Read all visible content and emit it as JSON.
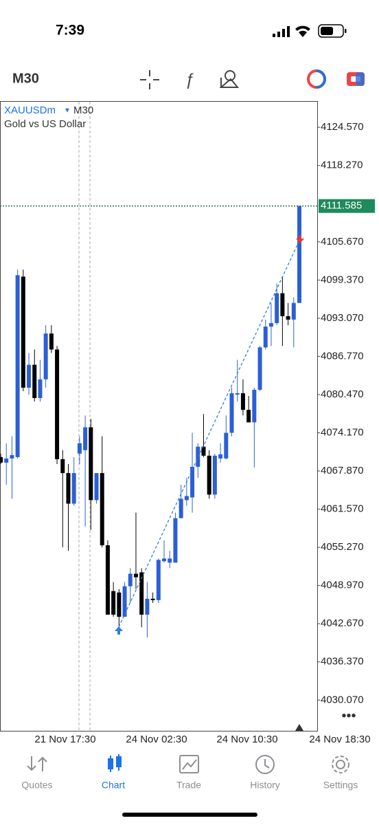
{
  "status_bar": {
    "time": "7:39"
  },
  "toolbar": {
    "timeframe": "M30"
  },
  "chart_data": {
    "type": "candlestick",
    "symbol": "XAUUSDm",
    "timeframe": "M30",
    "description": "Gold vs US Dollar",
    "up_color": "#2c5fd6",
    "down_color": "#000000",
    "open": [
      4070.16,
      4069.24,
      4069.93,
      4070.16,
      4099.94,
      4081.61,
      4085.39,
      4079.9,
      4082.99,
      4090.55,
      4087.91,
      4069.82,
      4067.52,
      4062.48,
      4070.73,
      4071.3,
      4075.08,
      4063.06,
      4067.52,
      4055.61,
      4048.05,
      4047.82,
      4043.81,
      4048.85,
      4050.91,
      4051.14,
      4044.16,
      4046.79,
      4046.56,
      4052.98,
      4052.75,
      4052.75,
      4060.08,
      4063.06,
      4063.51,
      4068.56,
      4071.88,
      4070.39,
      4063.97,
      4069.93,
      4069.93,
      4074.17,
      4080.47,
      4080.7,
      4077.95,
      4075.89,
      4081.27,
      4088.26,
      4091.69,
      4092.27,
      4097.19,
      4093.41,
      4092.84,
      4095.59
    ],
    "high": [
      4070.73,
      4072.45,
      4073.6,
      4101.09,
      4101.09,
      4087.34,
      4087.91,
      4086.2,
      4091.92,
      4091.92,
      4088.49,
      4071.3,
      4069.01,
      4070.16,
      4073.6,
      4077.03,
      4076.46,
      4067.52,
      4073.6,
      4056.41,
      4049.54,
      4048.39,
      4049.54,
      4051.83,
      4060.99,
      4051.83,
      4049.54,
      4047.82,
      4053.43,
      4056.41,
      4054.69,
      4060.99,
      4065.58,
      4066.72,
      4074.17,
      4072.45,
      4077.26,
      4071.3,
      4070.73,
      4072.45,
      4077.03,
      4081.61,
      4086.2,
      4082.99,
      4080.24,
      4081.61,
      4088.49,
      4092.84,
      4095.59,
      4098.8,
      4099.94,
      4095.59,
      4096.5,
      4111.59
    ],
    "low": [
      4069.01,
      4065.58,
      4063.29,
      4069.93,
      4081.04,
      4080.47,
      4079.32,
      4079.32,
      4081.61,
      4087.34,
      4069.01,
      4055.27,
      4054.69,
      4062.14,
      4069.01,
      4058.7,
      4058.13,
      4062.48,
      4055.27,
      4044.16,
      4043.81,
      4042.09,
      4043.81,
      4046.1,
      4048.39,
      4042.09,
      4040.38,
      4046.1,
      4046.1,
      4052.75,
      4051.83,
      4052.75,
      4060.08,
      4062.14,
      4060.99,
      4066.72,
      4070.16,
      4063.29,
      4063.29,
      4069.24,
      4069.82,
      4073.6,
      4079.32,
      4077.03,
      4075.89,
      4068.44,
      4081.04,
      4087.91,
      4088.49,
      4091.92,
      4088.49,
      4091.92,
      4088.26,
      4095.59
    ],
    "close": [
      4069.24,
      4069.93,
      4070.5,
      4100.17,
      4081.61,
      4085.39,
      4079.9,
      4082.99,
      4090.55,
      4087.91,
      4069.82,
      4067.52,
      4062.48,
      4067.52,
      4072.45,
      4075.08,
      4063.06,
      4067.52,
      4055.61,
      4044.16,
      4044.16,
      4043.81,
      4048.85,
      4050.91,
      4050.34,
      4044.16,
      4046.79,
      4046.56,
      4053.2,
      4053.43,
      4053.43,
      4060.08,
      4063.29,
      4063.74,
      4068.56,
      4071.88,
      4070.39,
      4063.97,
      4070.39,
      4070.62,
      4074.17,
      4080.7,
      4080.7,
      4077.95,
      4075.89,
      4081.27,
      4088.26,
      4091.69,
      4092.27,
      4097.19,
      4093.41,
      4092.84,
      4095.59,
      4111.59
    ],
    "ylim": [
      4025.0,
      4128.9
    ],
    "yticks": [
      {
        "value": 4124.57,
        "label": "4124.570"
      },
      {
        "value": 4118.27,
        "label": "4118.270"
      },
      {
        "value": 4105.67,
        "label": "4105.670"
      },
      {
        "value": 4099.37,
        "label": "4099.370"
      },
      {
        "value": 4093.07,
        "label": "4093.070"
      },
      {
        "value": 4086.77,
        "label": "4086.770"
      },
      {
        "value": 4080.47,
        "label": "4080.470"
      },
      {
        "value": 4074.17,
        "label": "4074.170"
      },
      {
        "value": 4067.87,
        "label": "4067.870"
      },
      {
        "value": 4061.57,
        "label": "4061.570"
      },
      {
        "value": 4055.27,
        "label": "4055.270"
      },
      {
        "value": 4048.97,
        "label": "4048.970"
      },
      {
        "value": 4042.67,
        "label": "4042.670"
      },
      {
        "value": 4036.37,
        "label": "4036.370"
      },
      {
        "value": 4030.07,
        "label": "4030.070"
      }
    ],
    "current_price": {
      "value": 4111.585,
      "label": "4111.585"
    },
    "x_labels": [
      "21 Nov 17:30",
      "24 Nov 02:30",
      "24 Nov 10:30",
      "24 Nov 18:30"
    ]
  },
  "nav": {
    "tabs": [
      "Quotes",
      "Chart",
      "Trade",
      "History",
      "Settings"
    ],
    "active_tab": 1
  }
}
